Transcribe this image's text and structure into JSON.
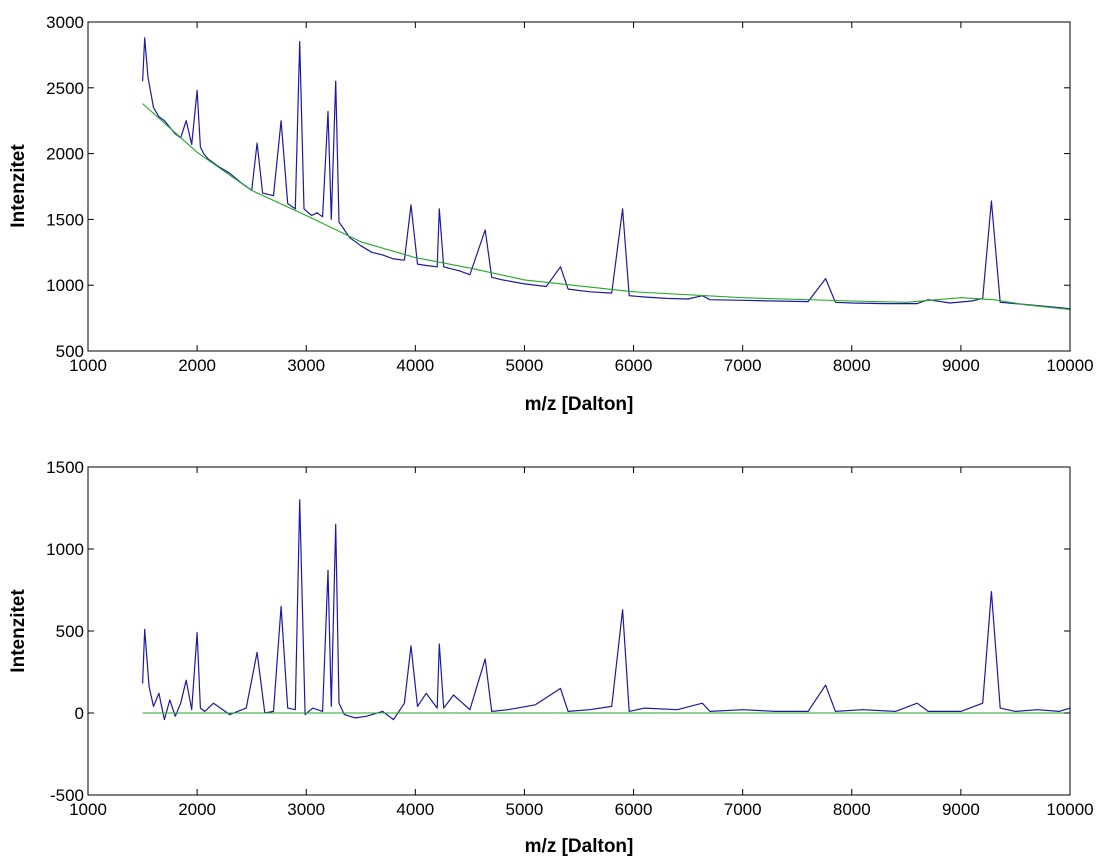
{
  "chart_data": [
    {
      "type": "line",
      "title": "",
      "xlabel": "m/z [Dalton]",
      "ylabel": "Intenzitet",
      "xlim": [
        1000,
        10000
      ],
      "ylim": [
        500,
        3000
      ],
      "xticks": [
        1000,
        2000,
        3000,
        4000,
        5000,
        6000,
        7000,
        8000,
        9000,
        10000
      ],
      "yticks": [
        500,
        1000,
        1500,
        2000,
        2500,
        3000
      ],
      "x_tick_labels": [
        "1000",
        "2000",
        "3000",
        "4000",
        "5000",
        "6000",
        "7000",
        "8000",
        "9000",
        "10000"
      ],
      "y_tick_labels": [
        "500",
        "1000",
        "1500",
        "2000",
        "2500",
        "3000"
      ],
      "grid": false,
      "series": [
        {
          "color": "#1a1aa6",
          "x": [
            1500,
            1520,
            1550,
            1600,
            1650,
            1700,
            1750,
            1800,
            1850,
            1900,
            1950,
            2000,
            2030,
            2060,
            2100,
            2200,
            2300,
            2400,
            2500,
            2550,
            2600,
            2700,
            2770,
            2830,
            2900,
            2940,
            2980,
            3050,
            3100,
            3150,
            3200,
            3230,
            3270,
            3300,
            3350,
            3400,
            3500,
            3600,
            3700,
            3800,
            3900,
            3960,
            4020,
            4100,
            4200,
            4220,
            4260,
            4300,
            4400,
            4500,
            4640,
            4700,
            4800,
            5000,
            5200,
            5330,
            5400,
            5600,
            5800,
            5900,
            5960,
            6100,
            6300,
            6500,
            6630,
            6700,
            7000,
            7300,
            7600,
            7760,
            7850,
            8000,
            8300,
            8600,
            8700,
            8900,
            9100,
            9200,
            9280,
            9360,
            9500,
            9700,
            9900,
            10000
          ],
          "y": [
            2550,
            2880,
            2580,
            2350,
            2280,
            2250,
            2200,
            2150,
            2120,
            2250,
            2070,
            2480,
            2050,
            2000,
            1960,
            1900,
            1850,
            1780,
            1720,
            2080,
            1700,
            1680,
            2250,
            1620,
            1580,
            2850,
            1580,
            1530,
            1550,
            1520,
            2320,
            1500,
            2550,
            1480,
            1420,
            1360,
            1300,
            1250,
            1230,
            1200,
            1190,
            1610,
            1160,
            1150,
            1140,
            1580,
            1140,
            1130,
            1110,
            1080,
            1420,
            1060,
            1040,
            1010,
            990,
            1140,
            970,
            950,
            940,
            1580,
            920,
            910,
            900,
            895,
            920,
            890,
            885,
            880,
            875,
            1050,
            870,
            865,
            860,
            860,
            890,
            865,
            880,
            900,
            1640,
            870,
            860,
            845,
            830,
            820
          ]
        },
        {
          "color": "#22aa22",
          "x": [
            1500,
            2000,
            2500,
            3000,
            3500,
            4000,
            4500,
            5000,
            6000,
            7000,
            8000,
            8500,
            9000,
            9300,
            9600,
            10000
          ],
          "y": [
            2380,
            2010,
            1720,
            1530,
            1330,
            1210,
            1130,
            1040,
            950,
            905,
            880,
            870,
            905,
            890,
            850,
            815
          ]
        }
      ]
    },
    {
      "type": "line",
      "title": "",
      "xlabel": "m/z [Dalton]",
      "ylabel": "Intenzitet",
      "xlim": [
        1000,
        10000
      ],
      "ylim": [
        -500,
        1500
      ],
      "xticks": [
        1000,
        2000,
        3000,
        4000,
        5000,
        6000,
        7000,
        8000,
        9000,
        10000
      ],
      "yticks": [
        -500,
        0,
        500,
        1000,
        1500
      ],
      "x_tick_labels": [
        "1000",
        "2000",
        "3000",
        "4000",
        "5000",
        "6000",
        "7000",
        "8000",
        "9000",
        "10000"
      ],
      "y_tick_labels": [
        "-500",
        "0",
        "500",
        "1000",
        "1500"
      ],
      "grid": false,
      "series": [
        {
          "color": "#1a1aa6",
          "x": [
            1500,
            1520,
            1560,
            1600,
            1650,
            1700,
            1750,
            1800,
            1850,
            1900,
            1950,
            2000,
            2030,
            2070,
            2150,
            2300,
            2450,
            2550,
            2620,
            2700,
            2770,
            2830,
            2900,
            2940,
            2990,
            3060,
            3150,
            3200,
            3230,
            3270,
            3300,
            3350,
            3450,
            3550,
            3700,
            3800,
            3900,
            3960,
            4020,
            4100,
            4200,
            4220,
            4260,
            4350,
            4500,
            4640,
            4700,
            4850,
            5100,
            5330,
            5400,
            5600,
            5800,
            5900,
            5960,
            6100,
            6400,
            6630,
            6700,
            7000,
            7300,
            7600,
            7760,
            7850,
            8100,
            8400,
            8600,
            8700,
            9000,
            9200,
            9280,
            9360,
            9500,
            9700,
            9900,
            10000
          ],
          "y": [
            180,
            510,
            160,
            40,
            120,
            -40,
            80,
            -20,
            60,
            200,
            20,
            490,
            30,
            10,
            60,
            -10,
            30,
            370,
            0,
            10,
            650,
            30,
            20,
            1300,
            -10,
            30,
            10,
            870,
            40,
            1150,
            60,
            -10,
            -30,
            -20,
            10,
            -40,
            60,
            410,
            40,
            120,
            30,
            420,
            30,
            110,
            20,
            330,
            10,
            20,
            50,
            150,
            10,
            20,
            40,
            630,
            10,
            30,
            20,
            60,
            10,
            20,
            10,
            10,
            170,
            10,
            20,
            10,
            60,
            10,
            10,
            60,
            740,
            30,
            10,
            20,
            10,
            30
          ]
        },
        {
          "color": "#22aa22",
          "x": [
            1500,
            10000
          ],
          "y": [
            0,
            0
          ]
        }
      ]
    }
  ]
}
